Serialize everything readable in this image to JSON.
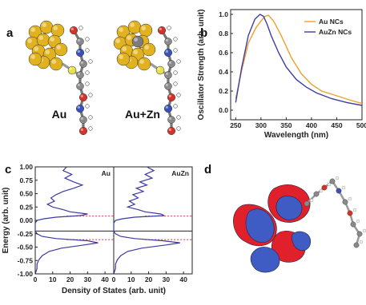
{
  "panels": {
    "a": {
      "label": "a",
      "structures": [
        {
          "name": "Au",
          "has_zn": false
        },
        {
          "name": "Au+Zn",
          "has_zn": true
        }
      ],
      "colors": {
        "gold": "#e2b21e",
        "zinc": "#7c7c7c",
        "carbon": "#8a8a8a",
        "oxygen": "#d2342a",
        "nitrogen": "#3a52b8",
        "sulfur": "#e6e04a",
        "hydrogen": "#f2f2f2"
      }
    },
    "b": {
      "label": "b",
      "legend": [
        "Au NCs",
        "AuZn NCs"
      ]
    },
    "c": {
      "label": "c",
      "panel_titles": [
        "Au",
        "AuZn"
      ]
    },
    "d": {
      "label": "d",
      "colors": {
        "lobe_red": "#e0202b",
        "lobe_blue": "#3f5cc4"
      }
    }
  },
  "chart_data": [
    {
      "type": "line",
      "xlabel": "Wavelength (nm)",
      "ylabel": "Oscillator Strength (arb. unit)",
      "xlim": [
        240,
        500
      ],
      "ylim": [
        -0.1,
        1.05
      ],
      "xticks": [
        250,
        300,
        350,
        400,
        450,
        500
      ],
      "yticks": [
        0.0,
        0.2,
        0.4,
        0.6,
        0.8,
        1.0
      ],
      "legend_position": "top-right",
      "series": [
        {
          "name": "Au NCs",
          "color": "#f0a02c",
          "x": [
            250,
            262,
            275,
            290,
            300,
            308,
            315,
            325,
            340,
            360,
            380,
            400,
            420,
            450,
            480,
            500
          ],
          "y": [
            0.12,
            0.42,
            0.7,
            0.86,
            0.93,
            0.98,
            0.99,
            0.93,
            0.78,
            0.55,
            0.38,
            0.27,
            0.2,
            0.15,
            0.1,
            0.07
          ]
        },
        {
          "name": "AuZn NCs",
          "color": "#3c3ca8",
          "x": [
            250,
            262,
            275,
            288,
            298,
            305,
            312,
            320,
            335,
            350,
            370,
            390,
            410,
            440,
            470,
            500
          ],
          "y": [
            0.08,
            0.45,
            0.78,
            0.95,
            1.0,
            0.98,
            0.9,
            0.78,
            0.6,
            0.45,
            0.32,
            0.24,
            0.18,
            0.12,
            0.08,
            0.05
          ]
        }
      ]
    },
    {
      "type": "line",
      "ylabel": "Energy (arb. unit)",
      "xlabel": "Density of States (arb. unit)",
      "ylim": [
        -1.0,
        1.0
      ],
      "yticks": [
        1.0,
        0.75,
        0.5,
        0.25,
        0.0,
        -0.25,
        -0.5,
        -0.75,
        -1.0
      ],
      "xticks": [
        0,
        10,
        20,
        30,
        40
      ],
      "xlim": [
        0,
        45
      ],
      "fermi_level": -0.2,
      "subplots": [
        {
          "title": "Au",
          "reference_lines": [
            0.08,
            -0.36
          ],
          "energy": [
            1.0,
            0.93,
            0.86,
            0.79,
            0.72,
            0.66,
            0.6,
            0.54,
            0.48,
            0.42,
            0.36,
            0.3,
            0.25,
            0.2,
            0.16,
            0.12,
            0.09,
            0.06,
            0.03,
            0.0,
            -0.05,
            -0.1,
            -0.15,
            -0.2,
            -0.25,
            -0.3,
            -0.34,
            -0.38,
            -0.42,
            -0.46,
            -0.52,
            -0.58,
            -0.66,
            -0.74,
            -0.82,
            -0.9,
            -1.0
          ],
          "dos": [
            18,
            16,
            21,
            17,
            22,
            27,
            22,
            16,
            12,
            9,
            11,
            7,
            10,
            16,
            20,
            30,
            26,
            12,
            5,
            1,
            0,
            0,
            0,
            0,
            1,
            4,
            12,
            30,
            36,
            28,
            15,
            8,
            4,
            2,
            1,
            1,
            0
          ]
        },
        {
          "title": "AuZn",
          "reference_lines": [
            0.08,
            -0.36
          ],
          "energy": [
            1.0,
            0.93,
            0.86,
            0.79,
            0.72,
            0.66,
            0.6,
            0.54,
            0.48,
            0.42,
            0.36,
            0.3,
            0.25,
            0.2,
            0.16,
            0.12,
            0.09,
            0.06,
            0.03,
            0.0,
            -0.05,
            -0.1,
            -0.15,
            -0.2,
            -0.25,
            -0.3,
            -0.34,
            -0.38,
            -0.42,
            -0.46,
            -0.52,
            -0.58,
            -0.66,
            -0.74,
            -0.82,
            -0.9,
            -1.0
          ],
          "dos": [
            19,
            23,
            18,
            22,
            15,
            19,
            13,
            17,
            11,
            14,
            9,
            12,
            8,
            14,
            18,
            27,
            29,
            12,
            5,
            1,
            0,
            0,
            0,
            0,
            1,
            4,
            12,
            28,
            38,
            30,
            16,
            8,
            4,
            2,
            1,
            1,
            0
          ]
        }
      ]
    }
  ]
}
